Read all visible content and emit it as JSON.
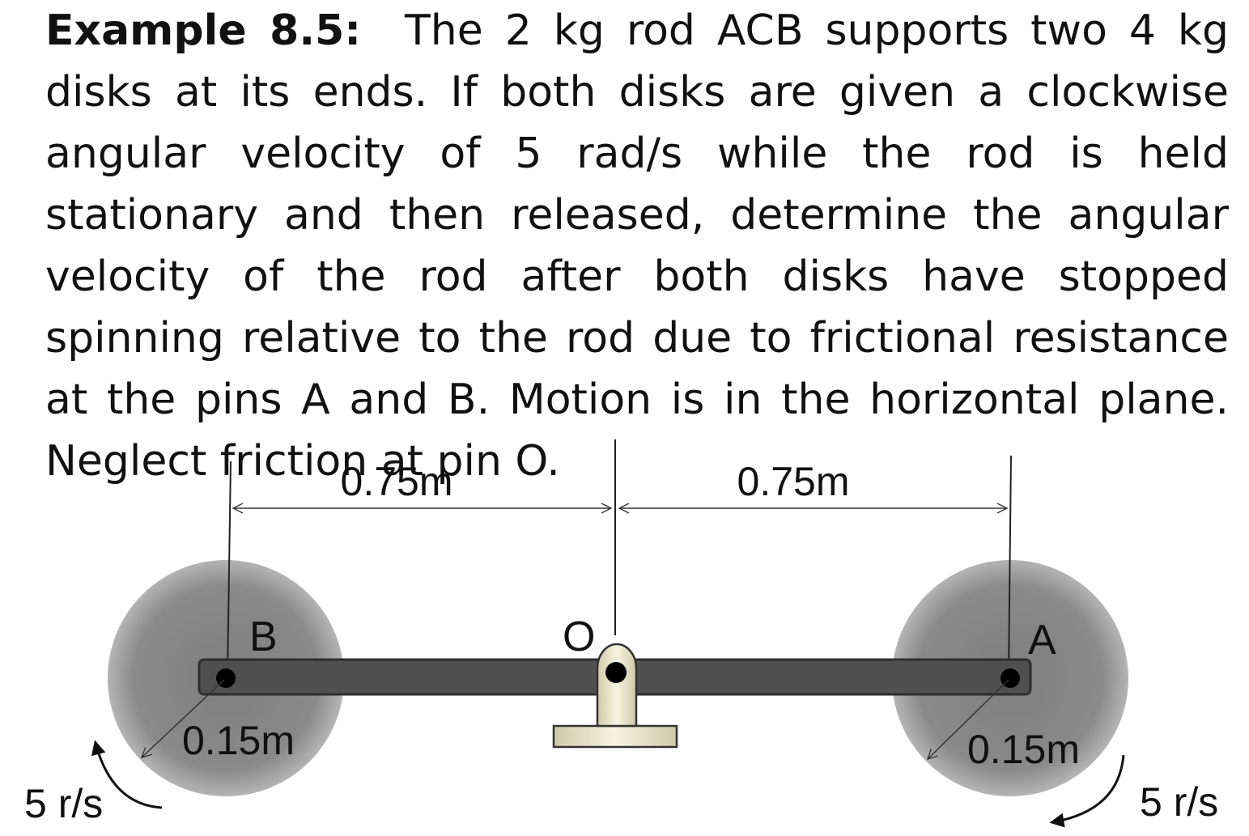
{
  "problem": {
    "label": "Example 8.5:",
    "text": "The 2 kg rod ACB supports two 4 kg disks at its ends. If both disks are given a clockwise angular velocity of 5 rad/s while the rod is held stationary and then released, determine the angular velocity of the rod after both disks have stopped spinning relative to the rod due to frictional resistance at the pins A and B. Motion is in the horizontal plane. Neglect friction at pin O."
  },
  "diagram": {
    "dim_left": "0.75m",
    "dim_right": "0.75m",
    "radius_left": "0.15m",
    "radius_right": "0.15m",
    "pin_b": "B",
    "pin_o": "O",
    "pin_a": "A",
    "omega_left": "5 r/s",
    "omega_right": "5 r/s"
  },
  "colors": {
    "disk_fill": "#8a8a8a",
    "disk_edge": "#a8a8a8",
    "rod_fill": "#505050",
    "support_fill": "#ece8d2"
  }
}
